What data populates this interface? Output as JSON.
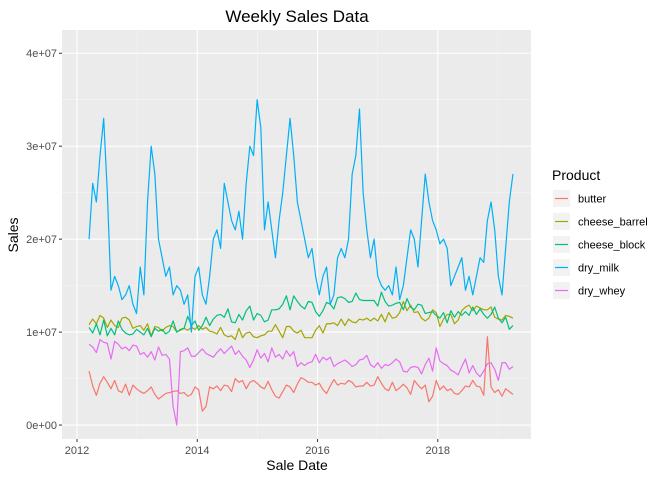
{
  "chart_data": {
    "type": "line",
    "title": "Weekly Sales Data",
    "xlabel": "Sale Date",
    "ylabel": "Sales",
    "xlim": [
      2011.75,
      2019.55
    ],
    "ylim": [
      -1500000,
      42500000
    ],
    "x_ticks": [
      2012,
      2014,
      2016,
      2018
    ],
    "x_tick_labels": [
      "2012",
      "2014",
      "2016",
      "2018"
    ],
    "y_ticks": [
      0,
      10000000,
      20000000,
      30000000,
      40000000
    ],
    "y_tick_labels": [
      "0e+00",
      "1e+07",
      "2e+07",
      "3e+07",
      "4e+07"
    ],
    "grid": true,
    "legend_title": "Product",
    "legend_position": "right",
    "x_start": 2012.2,
    "x_end": 2019.25,
    "series": [
      {
        "name": "butter",
        "color": "#F8766D",
        "values": [
          5800000,
          4200000,
          3200000,
          4500000,
          5200000,
          4600000,
          3900000,
          4800000,
          3700000,
          3500000,
          4400000,
          3200000,
          4300000,
          3900000,
          3600000,
          3400000,
          3700000,
          4100000,
          3300000,
          2800000,
          3100000,
          3400000,
          3500000,
          3600000,
          3700000,
          3400000,
          3500000,
          3100000,
          3300000,
          4100000,
          3800000,
          1500000,
          2000000,
          4100000,
          3900000,
          4200000,
          3700000,
          4300000,
          4200000,
          3600000,
          5000000,
          4600000,
          4800000,
          3900000,
          4600000,
          4800000,
          4500000,
          4100000,
          3900000,
          4700000,
          3800000,
          3100000,
          2900000,
          3600000,
          4300000,
          4100000,
          3500000,
          4400000,
          5100000,
          4900000,
          4600000,
          4600000,
          4300000,
          4500000,
          3800000,
          3400000,
          4200000,
          4900000,
          4300000,
          4500000,
          4400000,
          4800000,
          4600000,
          4100000,
          4200000,
          4200000,
          4600000,
          4200000,
          4300000,
          5200000,
          4500000,
          3900000,
          3700000,
          4600000,
          3700000,
          4000000,
          4400000,
          4000000,
          3300000,
          4800000,
          4300000,
          3900000,
          4300000,
          2500000,
          3100000,
          4800000,
          3800000,
          4200000,
          3700000,
          3900000,
          3400000,
          3300000,
          3700000,
          4200000,
          4100000,
          4800000,
          4200000,
          4100000,
          3200000,
          9500000,
          4100000,
          3500000,
          3800000,
          3100000,
          3900000,
          3600000,
          3300000
        ]
      },
      {
        "name": "cheese_barrel",
        "color": "#A3A500",
        "values": [
          10800000,
          11400000,
          10900000,
          11800000,
          11500000,
          10500000,
          11300000,
          10700000,
          10500000,
          11500000,
          11600000,
          11300000,
          10400000,
          10600000,
          10700000,
          10200000,
          10900000,
          9600000,
          10600000,
          10500000,
          10100000,
          10500000,
          10700000,
          10600000,
          10000000,
          10200000,
          10400000,
          10200000,
          10500000,
          10300000,
          10700000,
          10300000,
          10500000,
          10100000,
          10000000,
          9800000,
          10500000,
          9700000,
          9500000,
          9600000,
          9200000,
          10400000,
          9400000,
          9900000,
          10000000,
          9500000,
          9400000,
          9600000,
          9700000,
          10100000,
          10100000,
          10800000,
          10100000,
          9400000,
          10600000,
          10600000,
          10100000,
          9900000,
          10200000,
          9400000,
          9400000,
          9400000,
          10200000,
          10700000,
          9900000,
          10900000,
          10900000,
          11000000,
          10700000,
          11400000,
          10700000,
          11400000,
          11100000,
          11000000,
          11400000,
          11300000,
          11500000,
          11200000,
          11500000,
          11200000,
          11900000,
          11100000,
          12100000,
          11500000,
          11600000,
          12100000,
          13300000,
          12300000,
          12900000,
          12100000,
          12200000,
          11500000,
          11200000,
          11500000,
          12400000,
          12100000,
          10600000,
          11400000,
          11900000,
          11900000,
          10900000,
          11300000,
          12300000,
          12700000,
          12900000,
          12300000,
          12800000,
          12600000,
          12400000,
          12400000,
          12700000,
          11600000,
          11400000,
          11300000,
          11800000,
          11700000,
          11500000
        ]
      },
      {
        "name": "cheese_block",
        "color": "#00BF7D",
        "values": [
          10500000,
          9900000,
          10900000,
          9700000,
          11300000,
          9600000,
          10400000,
          9700000,
          11200000,
          10300000,
          9900000,
          9700000,
          9800000,
          10300000,
          10000000,
          9700000,
          10400000,
          9500000,
          10400000,
          10100000,
          10300000,
          9800000,
          10100000,
          11200000,
          10000000,
          10300000,
          10400000,
          11700000,
          10700000,
          11200000,
          10200000,
          10700000,
          11600000,
          10700000,
          11400000,
          11800000,
          11900000,
          11600000,
          12500000,
          11100000,
          11000000,
          11900000,
          11300000,
          12300000,
          12800000,
          11300000,
          12000000,
          11800000,
          11100000,
          11300000,
          12400000,
          12400000,
          12500000,
          13000000,
          13900000,
          12400000,
          13900000,
          13300000,
          12800000,
          12500000,
          13300000,
          13200000,
          12200000,
          11700000,
          12300000,
          13200000,
          13000000,
          12500000,
          13700000,
          13800000,
          13600000,
          13200000,
          13300000,
          14200000,
          13500000,
          13400000,
          13400000,
          13400000,
          13400000,
          12800000,
          14300000,
          13300000,
          12800000,
          12900000,
          13100000,
          13200000,
          12400000,
          13600000,
          12700000,
          12400000,
          13000000,
          12900000,
          12000000,
          12100000,
          12200000,
          11800000,
          11500000,
          12100000,
          11000000,
          12300000,
          11600000,
          12200000,
          11800000,
          12200000,
          11800000,
          12700000,
          11900000,
          12500000,
          11900000,
          11500000,
          11900000,
          12700000,
          11500000,
          11000000,
          11600000,
          10300000,
          10700000
        ]
      },
      {
        "name": "dry_milk",
        "color": "#00B0F6",
        "values": [
          20000000,
          26000000,
          24000000,
          29000000,
          33000000,
          25000000,
          14500000,
          16000000,
          15000000,
          13500000,
          14000000,
          15000000,
          13000000,
          12000000,
          17000000,
          14000000,
          24000000,
          30000000,
          27000000,
          20000000,
          18000000,
          16000000,
          17000000,
          14000000,
          15000000,
          14500000,
          13000000,
          14000000,
          10000000,
          16000000,
          17000000,
          14000000,
          13000000,
          16000000,
          20000000,
          21000000,
          19000000,
          26000000,
          24000000,
          22000000,
          21000000,
          23000000,
          20000000,
          26000000,
          30000000,
          29000000,
          35000000,
          32000000,
          21000000,
          24000000,
          21000000,
          18000000,
          22000000,
          25000000,
          29000000,
          33000000,
          29000000,
          24000000,
          22000000,
          20000000,
          18000000,
          19000000,
          16000000,
          14000000,
          16000000,
          17000000,
          13000000,
          14000000,
          18000000,
          19000000,
          18000000,
          20000000,
          27000000,
          29000000,
          34000000,
          25000000,
          21000000,
          18000000,
          20000000,
          16000000,
          15000000,
          14500000,
          15000000,
          14000000,
          17000000,
          13500000,
          15000000,
          18000000,
          21000000,
          20000000,
          17000000,
          22000000,
          27000000,
          24000000,
          22000000,
          21000000,
          19500000,
          20000000,
          19000000,
          15000000,
          16000000,
          17000000,
          18000000,
          14500000,
          16000000,
          14000000,
          16000000,
          18000000,
          17500000,
          22000000,
          24000000,
          21000000,
          16000000,
          14000000,
          19000000,
          24000000,
          27000000
        ]
      },
      {
        "name": "dry_whey",
        "color": "#E76BF3",
        "values": [
          8700000,
          8400000,
          7800000,
          9200000,
          8900000,
          8800000,
          7100000,
          9000000,
          8700000,
          8200000,
          8400000,
          8000000,
          8600000,
          8500000,
          7600000,
          7800000,
          7300000,
          7900000,
          7000000,
          8400000,
          7500000,
          7600000,
          7100000,
          2000000,
          0,
          7900000,
          8000000,
          8300000,
          7400000,
          7400000,
          7800000,
          8200000,
          7700000,
          7500000,
          7300000,
          7800000,
          8200000,
          7700000,
          8100000,
          8500000,
          7600000,
          8000000,
          7400000,
          7000000,
          6200000,
          7000000,
          8100000,
          7200000,
          7700000,
          6800000,
          8300000,
          7300000,
          7600000,
          7100000,
          8000000,
          7400000,
          7900000,
          6300000,
          6700000,
          6400000,
          6700000,
          6800000,
          7600000,
          6700000,
          7300000,
          7000000,
          7300000,
          6300000,
          6600000,
          6800000,
          7000000,
          6700000,
          6300000,
          6500000,
          7000000,
          7100000,
          7500000,
          6500000,
          6200000,
          6700000,
          6100000,
          6500000,
          6400000,
          6700000,
          7100000,
          6800000,
          5800000,
          5700000,
          6200000,
          6300000,
          6200000,
          5500000,
          6500000,
          7200000,
          5800000,
          8300000,
          6900000,
          6600000,
          6400000,
          5900000,
          5700000,
          5400000,
          6300000,
          7100000,
          5600000,
          6400000,
          5600000,
          5200000,
          5800000,
          6600000,
          6700000,
          6000000,
          4800000,
          6700000,
          6700000,
          6000000,
          6300000
        ]
      }
    ]
  }
}
